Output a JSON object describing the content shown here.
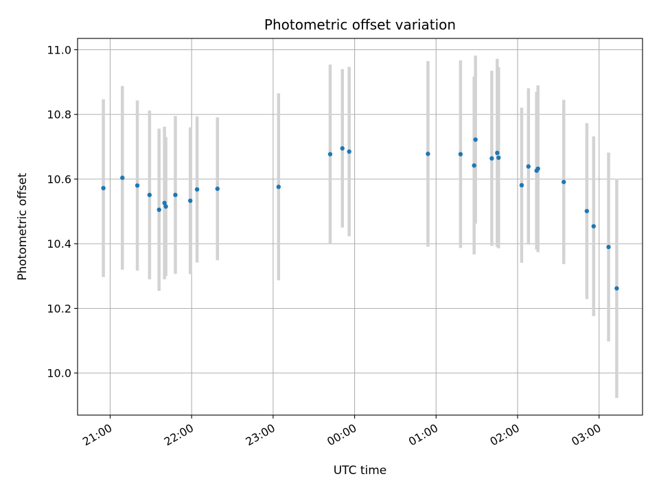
{
  "chart_data": {
    "type": "scatter",
    "title": "Photometric offset variation",
    "xlabel": "UTC time",
    "ylabel": "Photometric offset",
    "grid": true,
    "x_unit": "UTC, 2-day span across midnight",
    "xlim": [
      "20:36",
      "03:32"
    ],
    "ylim": [
      9.87,
      11.035
    ],
    "x_ticks": [
      "21:00",
      "22:00",
      "23:00",
      "00:00",
      "01:00",
      "02:00",
      "03:00"
    ],
    "y_ticks": [
      10.0,
      10.2,
      10.4,
      10.6,
      10.8,
      11.0
    ],
    "y_tick_labels": [
      "10.0",
      "10.2",
      "10.4",
      "10.6",
      "10.8",
      "11.0"
    ],
    "colors": {
      "point": "#1f77b4",
      "errorbar": "#d3d3d3",
      "grid": "#b0b0b0"
    },
    "series": [
      {
        "points": [
          {
            "x": "20:55",
            "y": 10.572,
            "err": 0.275
          },
          {
            "x": "21:09",
            "y": 10.604,
            "err": 0.284
          },
          {
            "x": "21:20",
            "y": 10.58,
            "err": 0.263
          },
          {
            "x": "21:29",
            "y": 10.551,
            "err": 0.261
          },
          {
            "x": "21:36",
            "y": 10.505,
            "err": 0.251
          },
          {
            "x": "21:40",
            "y": 10.526,
            "err": 0.236
          },
          {
            "x": "21:41",
            "y": 10.515,
            "err": 0.215
          },
          {
            "x": "21:48",
            "y": 10.551,
            "err": 0.244
          },
          {
            "x": "21:59",
            "y": 10.533,
            "err": 0.227
          },
          {
            "x": "22:04",
            "y": 10.568,
            "err": 0.226
          },
          {
            "x": "22:19",
            "y": 10.57,
            "err": 0.221
          },
          {
            "x": "23:04",
            "y": 10.576,
            "err": 0.289
          },
          {
            "x": "23:42",
            "y": 10.677,
            "err": 0.277
          },
          {
            "x": "23:51",
            "y": 10.695,
            "err": 0.245
          },
          {
            "x": "23:56",
            "y": 10.685,
            "err": 0.262
          },
          {
            "x": "00:54",
            "y": 10.678,
            "err": 0.287
          },
          {
            "x": "01:18",
            "y": 10.677,
            "err": 0.29
          },
          {
            "x": "01:28",
            "y": 10.642,
            "err": 0.275
          },
          {
            "x": "01:29",
            "y": 10.722,
            "err": 0.26
          },
          {
            "x": "01:41",
            "y": 10.664,
            "err": 0.271
          },
          {
            "x": "01:45",
            "y": 10.681,
            "err": 0.291
          },
          {
            "x": "01:46",
            "y": 10.666,
            "err": 0.28
          },
          {
            "x": "02:03",
            "y": 10.581,
            "err": 0.24
          },
          {
            "x": "02:08",
            "y": 10.639,
            "err": 0.242
          },
          {
            "x": "02:14",
            "y": 10.626,
            "err": 0.244
          },
          {
            "x": "02:15",
            "y": 10.632,
            "err": 0.258
          },
          {
            "x": "02:34",
            "y": 10.591,
            "err": 0.254
          },
          {
            "x": "02:51",
            "y": 10.501,
            "err": 0.272
          },
          {
            "x": "02:56",
            "y": 10.454,
            "err": 0.278
          },
          {
            "x": "03:07",
            "y": 10.39,
            "err": 0.292
          },
          {
            "x": "03:13",
            "y": 10.262,
            "err": 0.339
          }
        ]
      }
    ]
  }
}
